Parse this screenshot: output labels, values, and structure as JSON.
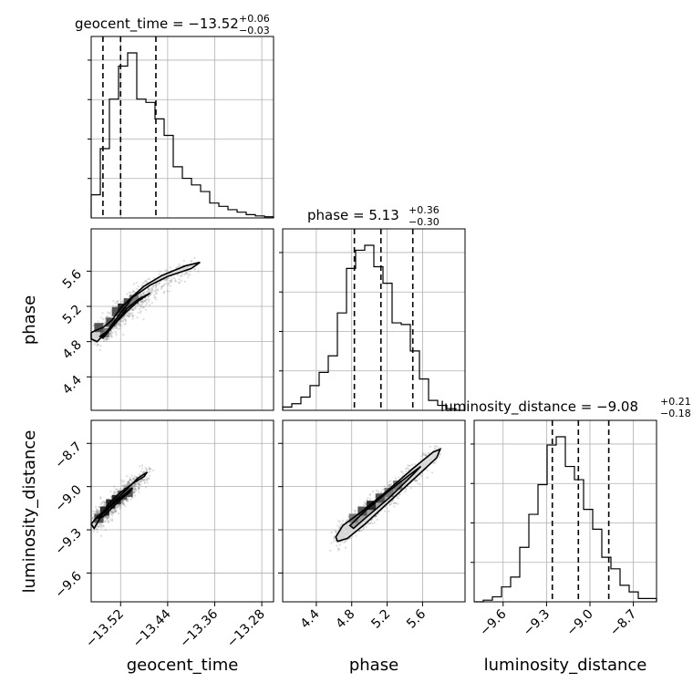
{
  "titles": {
    "geocent_time": {
      "name": "geocent_time = −13.52",
      "sup": "+0.06",
      "sub": "−0.03"
    },
    "phase": {
      "name": "phase = 5.13",
      "sup": "+0.36",
      "sub": "−0.30"
    },
    "luminosity_distance": {
      "name": "luminosity_distance = −9.08",
      "sup": "+0.21",
      "sub": "−0.18"
    }
  },
  "axis_labels": {
    "x_geocent_time": "geocent_time",
    "x_phase": "phase",
    "x_luminosity_distance": "luminosity_distance",
    "y_phase": "phase",
    "y_luminosity_distance": "luminosity_distance"
  },
  "chart_data": {
    "type": "histogram",
    "parameters": [
      "geocent_time",
      "phase",
      "luminosity_distance"
    ],
    "ranges": {
      "geocent_time": [
        -13.57,
        -13.26
      ],
      "phase": [
        4.02,
        6.08
      ],
      "luminosity_distance": [
        -9.8,
        -8.54
      ]
    },
    "ticks": {
      "geocent_time": [
        "−13.52",
        "−13.44",
        "−13.36",
        "−13.28"
      ],
      "phase": [
        "4.4",
        "4.8",
        "5.2",
        "5.6"
      ],
      "luminosity_distance": [
        "−9.6",
        "−9.3",
        "−9.0",
        "−8.7"
      ]
    },
    "tick_values": {
      "geocent_time": [
        -13.52,
        -13.44,
        -13.36,
        -13.28
      ],
      "phase": [
        4.4,
        4.8,
        5.2,
        5.6
      ],
      "luminosity_distance": [
        -9.6,
        -9.3,
        -9.0,
        -8.7
      ]
    },
    "quantiles": {
      "geocent_time": [
        -13.55,
        -13.52,
        -13.46
      ],
      "phase": [
        4.83,
        5.13,
        5.49
      ],
      "luminosity_distance": [
        -9.26,
        -9.08,
        -8.87
      ]
    },
    "hist_geocent_time": [
      0.14,
      0.42,
      0.72,
      0.92,
      1.0,
      0.72,
      0.7,
      0.6,
      0.5,
      0.31,
      0.24,
      0.2,
      0.16,
      0.09,
      0.07,
      0.05,
      0.035,
      0.02,
      0.012,
      0.007
    ],
    "hist_phase": [
      0.02,
      0.04,
      0.08,
      0.15,
      0.23,
      0.33,
      0.59,
      0.86,
      0.97,
      1.0,
      0.87,
      0.77,
      0.53,
      0.52,
      0.36,
      0.19,
      0.06,
      0.03,
      0.01,
      0.0
    ],
    "hist_luminosity_distance": [
      0.0,
      0.01,
      0.03,
      0.09,
      0.15,
      0.33,
      0.53,
      0.71,
      0.95,
      1.0,
      0.82,
      0.74,
      0.56,
      0.44,
      0.27,
      0.2,
      0.1,
      0.06,
      0.02,
      0.02
    ],
    "contours": {
      "phase_vs_geocent_time": {
        "outer": [
          [
            -13.565,
            4.92
          ],
          [
            -13.55,
            4.96
          ],
          [
            -13.535,
            5.04
          ],
          [
            -13.52,
            5.18
          ],
          [
            -13.5,
            5.31
          ],
          [
            -13.48,
            5.43
          ],
          [
            -13.45,
            5.55
          ],
          [
            -13.41,
            5.66
          ],
          [
            -13.385,
            5.7
          ],
          [
            -13.4,
            5.63
          ],
          [
            -13.44,
            5.54
          ],
          [
            -13.47,
            5.44
          ],
          [
            -13.5,
            5.3
          ],
          [
            -13.525,
            5.08
          ],
          [
            -13.545,
            4.9
          ],
          [
            -13.56,
            4.8
          ],
          [
            -13.57,
            4.83
          ],
          [
            -13.57,
            4.9
          ]
        ],
        "inner": [
          [
            -13.555,
            4.86
          ],
          [
            -13.54,
            4.93
          ],
          [
            -13.525,
            5.05
          ],
          [
            -13.51,
            5.17
          ],
          [
            -13.49,
            5.28
          ],
          [
            -13.47,
            5.35
          ],
          [
            -13.49,
            5.26
          ],
          [
            -13.51,
            5.14
          ],
          [
            -13.53,
            5.0
          ],
          [
            -13.55,
            4.84
          ]
        ]
      },
      "luminosity_distance_vs_geocent_time": {
        "outer": [
          [
            -13.57,
            -9.26
          ],
          [
            -13.56,
            -9.21
          ],
          [
            -13.545,
            -9.16
          ],
          [
            -13.53,
            -9.1
          ],
          [
            -13.51,
            -9.02
          ],
          [
            -13.49,
            -8.94
          ],
          [
            -13.475,
            -8.9
          ],
          [
            -13.48,
            -8.93
          ],
          [
            -13.5,
            -8.98
          ],
          [
            -13.52,
            -9.04
          ],
          [
            -13.54,
            -9.12
          ],
          [
            -13.555,
            -9.22
          ],
          [
            -13.565,
            -9.29
          ]
        ],
        "inner": [
          [
            -13.56,
            -9.22
          ],
          [
            -13.545,
            -9.17
          ],
          [
            -13.53,
            -9.11
          ],
          [
            -13.515,
            -9.06
          ],
          [
            -13.5,
            -9.01
          ],
          [
            -13.505,
            -9.04
          ],
          [
            -13.52,
            -9.09
          ],
          [
            -13.535,
            -9.15
          ],
          [
            -13.55,
            -9.21
          ]
        ]
      },
      "luminosity_distance_vs_phase": {
        "outer": [
          [
            4.62,
            -9.35
          ],
          [
            4.7,
            -9.27
          ],
          [
            4.9,
            -9.18
          ],
          [
            5.2,
            -9.03
          ],
          [
            5.5,
            -8.87
          ],
          [
            5.72,
            -8.76
          ],
          [
            5.8,
            -8.74
          ],
          [
            5.76,
            -8.8
          ],
          [
            5.55,
            -8.92
          ],
          [
            5.25,
            -9.09
          ],
          [
            4.95,
            -9.26
          ],
          [
            4.75,
            -9.36
          ],
          [
            4.64,
            -9.38
          ]
        ],
        "inner": [
          [
            4.78,
            -9.27
          ],
          [
            4.95,
            -9.17
          ],
          [
            5.2,
            -9.04
          ],
          [
            5.45,
            -8.92
          ],
          [
            5.58,
            -8.86
          ],
          [
            5.47,
            -8.93
          ],
          [
            5.22,
            -9.08
          ],
          [
            4.97,
            -9.21
          ],
          [
            4.82,
            -9.29
          ]
        ]
      }
    },
    "dense_cells": {
      "phase_vs_geocent_time": [
        [
          -13.547,
          4.9,
          3
        ],
        [
          -13.537,
          5.02,
          2
        ],
        [
          -13.527,
          5.14,
          2
        ],
        [
          -13.517,
          5.18,
          1
        ],
        [
          -13.507,
          5.24,
          2
        ],
        [
          -13.497,
          5.28,
          3
        ],
        [
          -13.557,
          4.96,
          2
        ]
      ],
      "luminosity_distance_vs_geocent_time": [
        [
          -13.547,
          -9.17,
          1
        ],
        [
          -13.537,
          -9.12,
          1
        ],
        [
          -13.527,
          -9.09,
          1
        ],
        [
          -13.517,
          -9.06,
          2
        ],
        [
          -13.507,
          -9.04,
          2
        ],
        [
          -13.557,
          -9.22,
          2
        ]
      ],
      "luminosity_distance_vs_phase": [
        [
          4.92,
          -9.17,
          2
        ],
        [
          5.02,
          -9.13,
          1
        ],
        [
          5.12,
          -9.08,
          2
        ],
        [
          5.22,
          -9.04,
          3
        ],
        [
          4.82,
          -9.22,
          3
        ],
        [
          5.32,
          -8.99,
          3
        ]
      ]
    }
  }
}
